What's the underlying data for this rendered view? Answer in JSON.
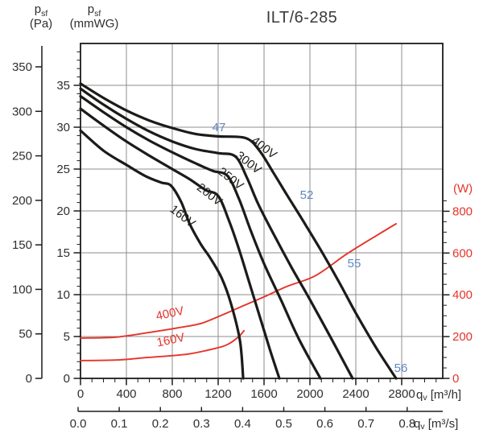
{
  "header": {
    "pressure_pa": {
      "sym": "p",
      "sub": "sf",
      "unit": "(Pa)"
    },
    "pressure_mmwg": {
      "sym": "p",
      "sub": "sf",
      "unit": "(mmWG)"
    },
    "title": "ILT/6-285"
  },
  "axes": {
    "pa": {
      "ticks": [
        0,
        50,
        100,
        150,
        200,
        250,
        300,
        350
      ]
    },
    "mmwg": {
      "ticks": [
        0,
        5,
        10,
        15,
        20,
        25,
        30,
        35
      ]
    },
    "watts": {
      "label": "(W)",
      "ticks": [
        0,
        200,
        400,
        600,
        800
      ]
    },
    "m3h": {
      "unit_sym": "q",
      "unit_sub": "v",
      "unit_rest": " [m³/h]",
      "ticks": [
        0,
        400,
        800,
        1200,
        1600,
        2000,
        2400,
        2800
      ]
    },
    "m3s": {
      "unit_sym": "q",
      "unit_sub": "v",
      "unit_rest": " [m³/s]",
      "ticks": [
        "0.0",
        "0.1",
        "0.2",
        "0.3",
        "0.4",
        "0.5",
        "0.6",
        "0.7",
        "0.8"
      ]
    }
  },
  "colors": {
    "curve_black": "#1b1b19",
    "power_red": "#e63329",
    "noise_blue": "#5e87c1",
    "grid_gray": "#8d8d8d",
    "text_dark": "#2f2f2e"
  },
  "chart_data": {
    "type": "line",
    "title": "ILT/6-285",
    "x_axis": {
      "label": "qv [m³/h]",
      "range": [
        0,
        3158
      ],
      "tick_step": 400,
      "secondary_label": "qv [m³/s]",
      "secondary_range": [
        0,
        0.88
      ]
    },
    "y_left": {
      "label": "psf (mmWG)",
      "range": [
        0,
        40
      ],
      "secondary_label": "psf (Pa)",
      "secondary_range": [
        0,
        350
      ]
    },
    "y_right": {
      "label": "(W)",
      "range": [
        0,
        800
      ]
    },
    "pressure_curves": [
      {
        "name": "400V",
        "label_q": 1580,
        "label_p": 27.2,
        "points": [
          [
            0,
            35.2
          ],
          [
            200,
            33.5
          ],
          [
            400,
            32.0
          ],
          [
            600,
            30.8
          ],
          [
            800,
            29.9
          ],
          [
            1000,
            29.2
          ],
          [
            1200,
            28.9
          ],
          [
            1440,
            28.7
          ],
          [
            1560,
            27.2
          ],
          [
            1680,
            24.6
          ],
          [
            1800,
            21.9
          ],
          [
            1950,
            18.6
          ],
          [
            2100,
            15.2
          ],
          [
            2250,
            11.6
          ],
          [
            2400,
            7.8
          ],
          [
            2580,
            3.6
          ],
          [
            2751,
            0
          ]
        ]
      },
      {
        "name": "300V",
        "label_q": 1445,
        "label_p": 25.4,
        "points": [
          [
            0,
            34.6
          ],
          [
            200,
            32.7
          ],
          [
            400,
            31.0
          ],
          [
            600,
            29.5
          ],
          [
            800,
            28.3
          ],
          [
            1000,
            27.4
          ],
          [
            1200,
            26.9
          ],
          [
            1350,
            26.5
          ],
          [
            1450,
            24.0
          ],
          [
            1550,
            20.8
          ],
          [
            1700,
            16.8
          ],
          [
            1850,
            13.0
          ],
          [
            2000,
            9.4
          ],
          [
            2200,
            4.4
          ],
          [
            2372,
            0
          ]
        ]
      },
      {
        "name": "250V",
        "label_q": 1290,
        "label_p": 23.5,
        "points": [
          [
            0,
            33.7
          ],
          [
            200,
            31.8
          ],
          [
            400,
            30.0
          ],
          [
            600,
            28.4
          ],
          [
            800,
            27.0
          ],
          [
            1000,
            25.7
          ],
          [
            1150,
            24.8
          ],
          [
            1280,
            24.2
          ],
          [
            1380,
            21.5
          ],
          [
            1480,
            17.8
          ],
          [
            1600,
            13.7
          ],
          [
            1750,
            9.3
          ],
          [
            1900,
            4.8
          ],
          [
            2091,
            0
          ]
        ]
      },
      {
        "name": "200V",
        "label_q": 1105,
        "label_p": 21.6,
        "points": [
          [
            0,
            32.2
          ],
          [
            200,
            30.2
          ],
          [
            400,
            28.3
          ],
          [
            600,
            26.6
          ],
          [
            800,
            25.0
          ],
          [
            950,
            23.8
          ],
          [
            1090,
            22.5
          ],
          [
            1200,
            21.8
          ],
          [
            1290,
            19.0
          ],
          [
            1380,
            15.5
          ],
          [
            1470,
            11.5
          ],
          [
            1560,
            7.5
          ],
          [
            1650,
            3.5
          ],
          [
            1733,
            0
          ]
        ]
      },
      {
        "name": "160V",
        "label_q": 870,
        "label_p": 19.0,
        "points": [
          [
            0,
            29.6
          ],
          [
            200,
            27.2
          ],
          [
            400,
            25.5
          ],
          [
            560,
            24.2
          ],
          [
            700,
            23.4
          ],
          [
            790,
            23.0
          ],
          [
            880,
            21.0
          ],
          [
            950,
            18.5
          ],
          [
            1050,
            16.0
          ],
          [
            1130,
            14.4
          ],
          [
            1230,
            12.0
          ],
          [
            1310,
            9.0
          ],
          [
            1390,
            4.5
          ],
          [
            1418,
            0
          ]
        ]
      }
    ],
    "power_curves": [
      {
        "name": "400V",
        "label_q": 786,
        "label_w": 293,
        "points": [
          [
            0,
            193
          ],
          [
            300,
            197
          ],
          [
            600,
            220
          ],
          [
            850,
            242
          ],
          [
            1050,
            263
          ],
          [
            1220,
            300
          ],
          [
            1400,
            343
          ],
          [
            1600,
            390
          ],
          [
            1800,
            440
          ],
          [
            2050,
            492
          ],
          [
            2320,
            595
          ],
          [
            2600,
            690
          ],
          [
            2751,
            740
          ]
        ]
      },
      {
        "name": "160V",
        "label_q": 793,
        "label_w": 166,
        "points": [
          [
            0,
            85
          ],
          [
            350,
            89
          ],
          [
            580,
            100
          ],
          [
            930,
            116
          ],
          [
            1170,
            143
          ],
          [
            1285,
            163
          ],
          [
            1380,
            200
          ],
          [
            1425,
            228
          ]
        ]
      }
    ],
    "noise_labels": [
      {
        "value": "47",
        "q": 1207,
        "p": 30.0
      },
      {
        "value": "52",
        "q": 1972,
        "p": 21.9
      },
      {
        "value": "55",
        "q": 2386,
        "p": 13.75
      },
      {
        "value": "56",
        "q": 2793,
        "p": 1.25
      }
    ]
  }
}
